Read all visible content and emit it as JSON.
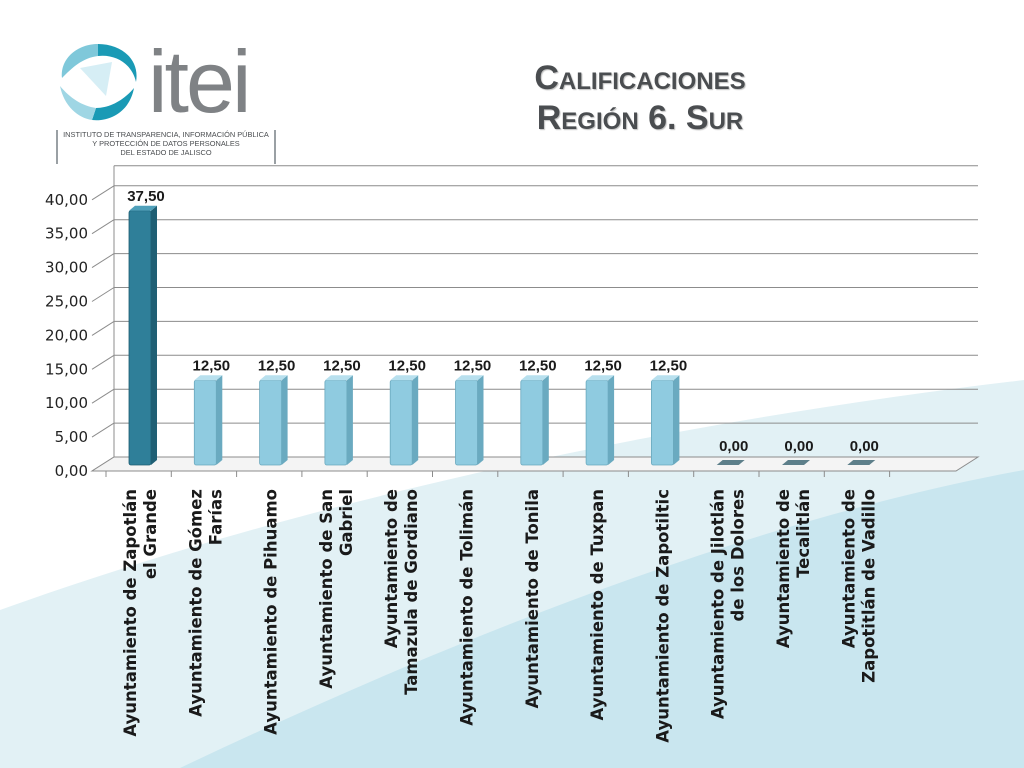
{
  "logo": {
    "word": "itei",
    "subtitle_lines": [
      "INSTITUTO DE TRANSPARENCIA, INFORMACIÓN PÚBLICA",
      "Y PROTECCIÓN DE DATOS PERSONALES",
      "DEL ESTADO DE JALISCO"
    ]
  },
  "title": {
    "line1": "Calificaciones",
    "line2": "Región 6. Sur"
  },
  "colors": {
    "highlight_bar": "#2f7f99",
    "bar": "#8fcbe0",
    "bar_side": "#6aaac0",
    "bar_top": "#b8e0ee",
    "background_wave": "#c9e6ef"
  },
  "chart_data": {
    "type": "bar",
    "categories": [
      [
        "Ayuntamiento de Zapotlán",
        "el Grande"
      ],
      [
        "Ayuntamiento de Gómez",
        "Farías"
      ],
      [
        "Ayuntamiento de Pihuamo"
      ],
      [
        "Ayuntamiento de San",
        "Gabriel"
      ],
      [
        "Ayuntamiento de",
        "Tamazula de Gordiano"
      ],
      [
        "Ayuntamiento de Tolimán"
      ],
      [
        "Ayuntamiento de Tonila"
      ],
      [
        "Ayuntamiento de Tuxpan"
      ],
      [
        "Ayuntamiento de Zapotiltic"
      ],
      [
        "Ayuntamiento de Jilotlán",
        "de los Dolores"
      ],
      [
        "Ayuntamiento de",
        "Tecalitlán"
      ],
      [
        "Ayuntamiento de",
        "Zapotitlán de Vadillo"
      ]
    ],
    "values": [
      37.5,
      12.5,
      12.5,
      12.5,
      12.5,
      12.5,
      12.5,
      12.5,
      12.5,
      0,
      0,
      0
    ],
    "data_labels": [
      "37,50",
      "12,50",
      "12,50",
      "12,50",
      "12,50",
      "12,50",
      "12,50",
      "12,50",
      "12,50",
      "0,00",
      "0,00",
      "0,00"
    ],
    "y_ticks": [
      "0,00",
      "5,00",
      "10,00",
      "15,00",
      "20,00",
      "25,00",
      "30,00",
      "35,00",
      "40,00"
    ],
    "ylim": [
      0,
      40
    ],
    "grid": true,
    "highlight_index": 0
  }
}
